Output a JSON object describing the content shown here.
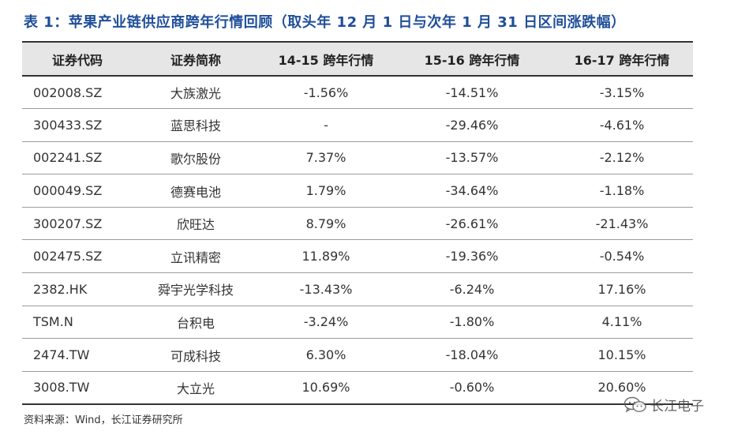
{
  "title": "表 1：苹果产业链供应商跨年行情回顾（取头年 12 月 1 日与次年 1 月 31 日区间涨跌幅）",
  "table": {
    "headers": [
      "证券代码",
      "证券简称",
      "14-15 跨年行情",
      "15-16 跨年行情",
      "16-17 跨年行情"
    ],
    "rows": [
      [
        "002008.SZ",
        "大族激光",
        "-1.56%",
        "-14.51%",
        "-3.15%"
      ],
      [
        "300433.SZ",
        "蓝思科技",
        "-",
        "-29.46%",
        "-4.61%"
      ],
      [
        "002241.SZ",
        "歌尔股份",
        "7.37%",
        "-13.57%",
        "-2.12%"
      ],
      [
        "000049.SZ",
        "德赛电池",
        "1.79%",
        "-34.64%",
        "-1.18%"
      ],
      [
        "300207.SZ",
        "欣旺达",
        "8.79%",
        "-26.61%",
        "-21.43%"
      ],
      [
        "002475.SZ",
        "立讯精密",
        "11.89%",
        "-19.36%",
        "-0.54%"
      ],
      [
        "2382.HK",
        "舜宇光学科技",
        "-13.43%",
        "-6.24%",
        "17.16%"
      ],
      [
        "TSM.N",
        "台积电",
        "-3.24%",
        "-1.80%",
        "4.11%"
      ],
      [
        "2474.TW",
        "可成科技",
        "6.30%",
        "-18.04%",
        "10.15%"
      ],
      [
        "3008.TW",
        "大立光",
        "10.69%",
        "-0.60%",
        "20.60%"
      ]
    ]
  },
  "source": "资料来源：Wind，长江证券研究所",
  "watermark": {
    "text": "长江电子",
    "icon": "wechat-icon"
  },
  "colors": {
    "title": "#1f4e9a",
    "header_bg": "#e6e6e6"
  }
}
